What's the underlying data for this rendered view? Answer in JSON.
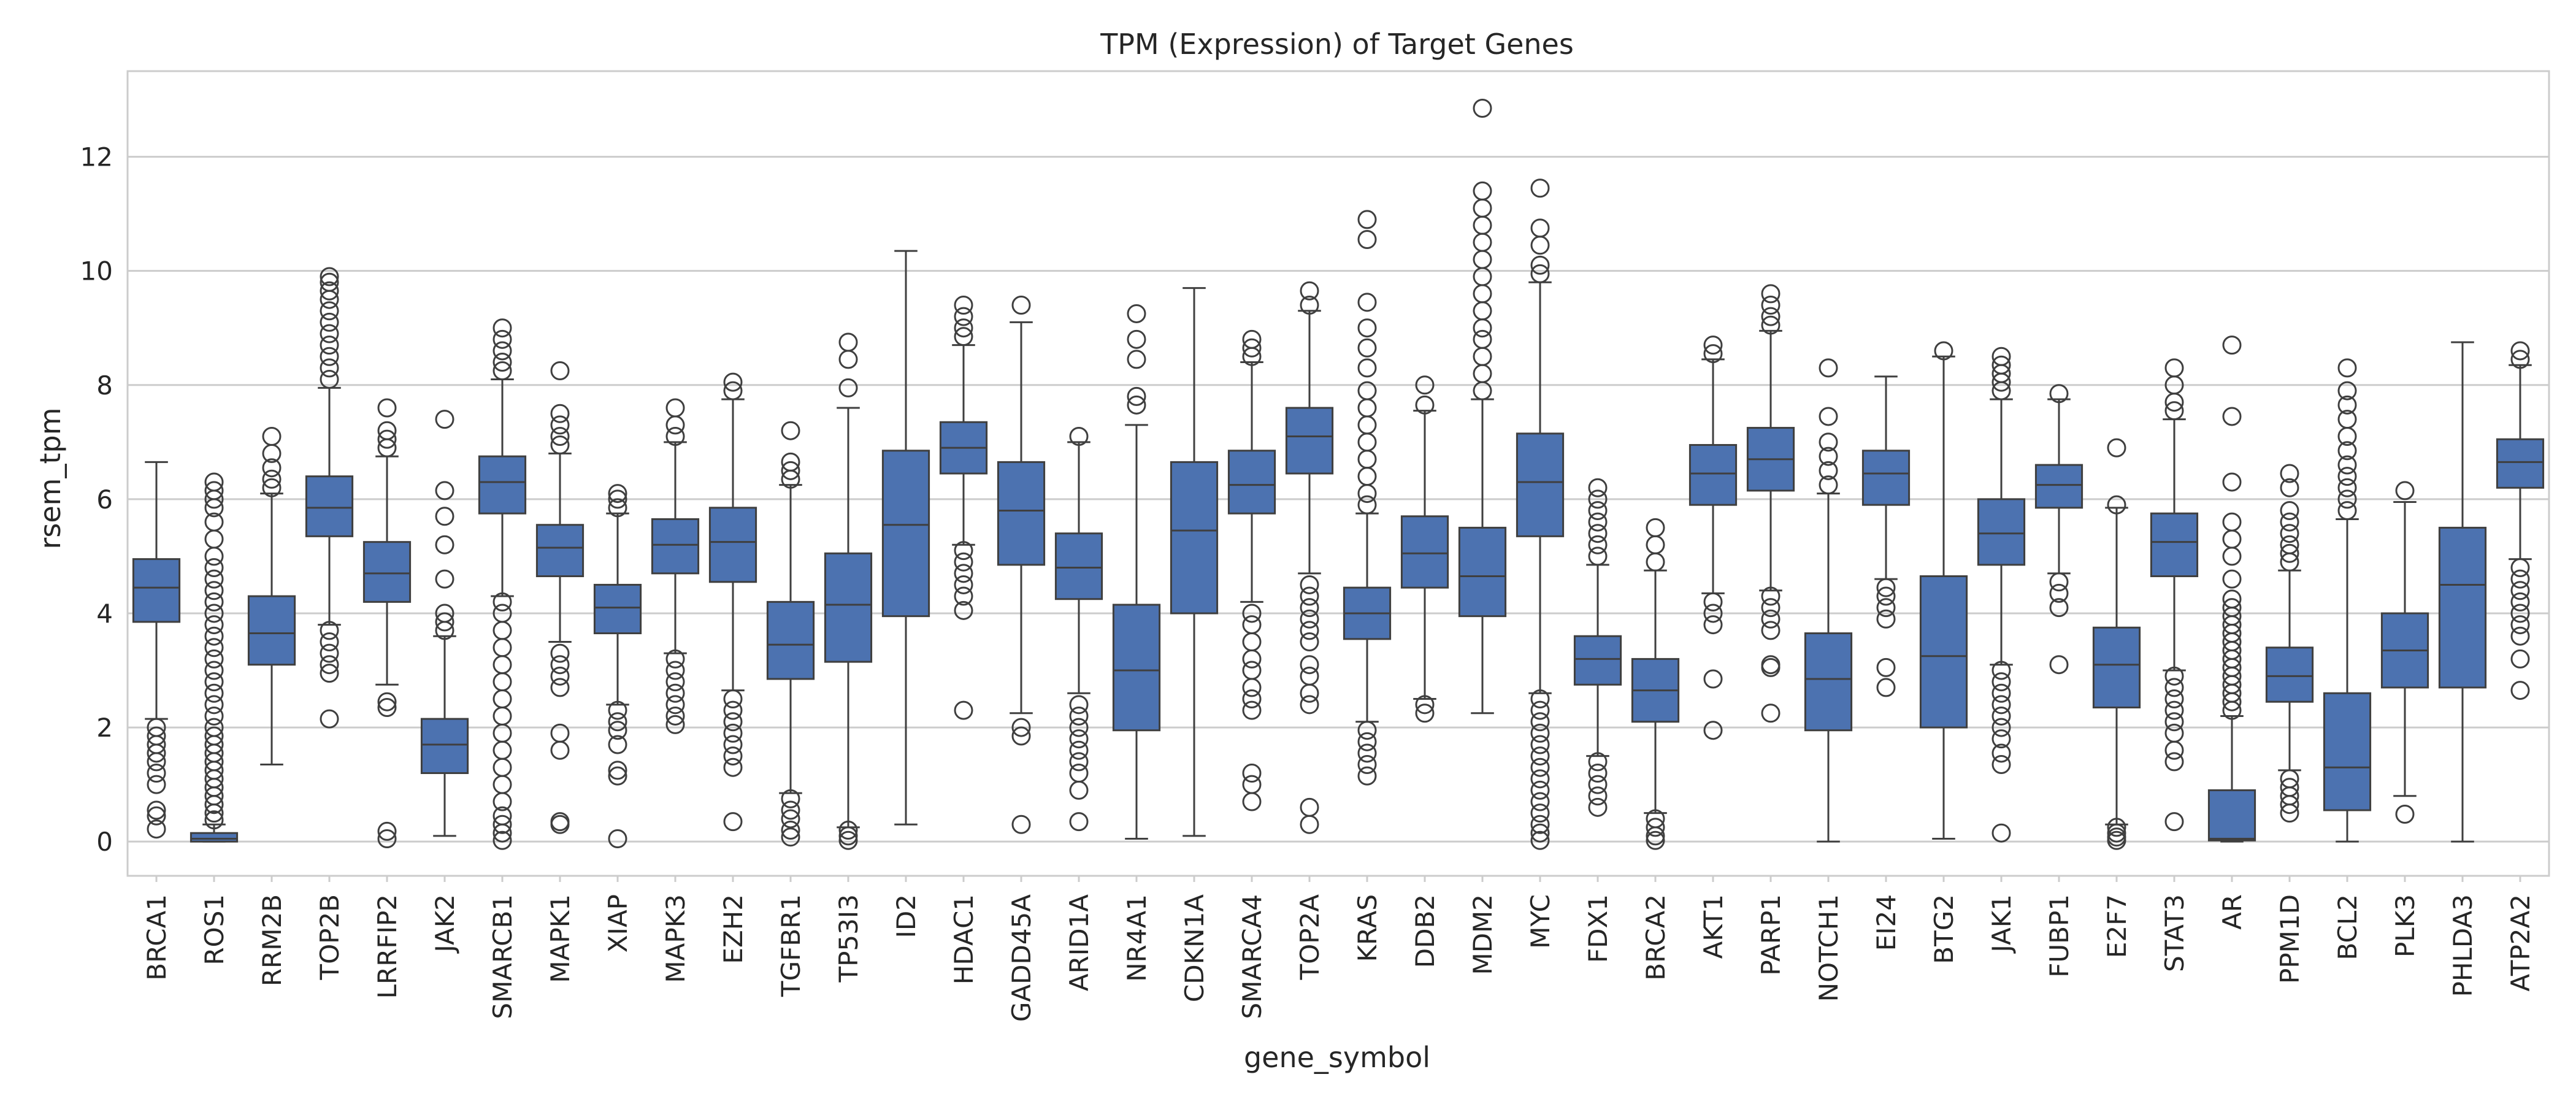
{
  "chart_data": {
    "type": "box",
    "title": "TPM (Expression) of Target Genes",
    "xlabel": "gene_symbol",
    "ylabel": "rsem_tpm",
    "ylim": [
      -0.6,
      13.5
    ],
    "yticks": [
      0,
      2,
      4,
      6,
      8,
      10,
      12
    ],
    "grid": "horizontal",
    "box_color": "#4c72b0",
    "line_color": "#3f3f3f",
    "categories": [
      "BRCA1",
      "ROS1",
      "RRM2B",
      "TOP2B",
      "LRRFIP2",
      "JAK2",
      "SMARCB1",
      "MAPK1",
      "XIAP",
      "MAPK3",
      "EZH2",
      "TGFBR1",
      "TP53I3",
      "ID2",
      "HDAC1",
      "GADD45A",
      "ARID1A",
      "NR4A1",
      "CDKN1A",
      "SMARCA4",
      "TOP2A",
      "KRAS",
      "DDB2",
      "MDM2",
      "MYC",
      "FDX1",
      "BRCA2",
      "AKT1",
      "PARP1",
      "NOTCH1",
      "EI24",
      "BTG2",
      "JAK1",
      "FUBP1",
      "E2F7",
      "STAT3",
      "AR",
      "PPM1D",
      "BCL2",
      "PLK3",
      "PHLDA3",
      "ATP2A2"
    ],
    "boxes": [
      {
        "lw": 2.15,
        "q1": 3.85,
        "med": 4.45,
        "q3": 4.95,
        "uw": 6.65,
        "out": [
          2.0,
          1.85,
          1.7,
          1.55,
          1.4,
          1.2,
          1.0,
          0.55,
          0.45,
          0.22
        ]
      },
      {
        "lw": 0.0,
        "q1": 0.0,
        "med": 0.05,
        "q3": 0.15,
        "uw": 0.3,
        "out": [
          6.3,
          6.15,
          6.0,
          5.85,
          5.6,
          5.3,
          5.0,
          4.8,
          4.6,
          4.4,
          4.2,
          4.0,
          3.8,
          3.6,
          3.4,
          3.2,
          3.0,
          2.8,
          2.6,
          2.4,
          2.2,
          2.0,
          1.85,
          1.7,
          1.55,
          1.4,
          1.25,
          1.1,
          0.95,
          0.8,
          0.65,
          0.5,
          0.38
        ]
      },
      {
        "lw": 1.35,
        "q1": 3.1,
        "med": 3.65,
        "q3": 4.3,
        "uw": 6.1,
        "out": [
          6.2,
          6.35,
          6.55,
          6.8,
          7.1
        ]
      },
      {
        "lw": 3.8,
        "q1": 5.35,
        "med": 5.85,
        "q3": 6.4,
        "uw": 7.95,
        "out": [
          8.1,
          8.3,
          8.5,
          8.7,
          8.9,
          9.1,
          9.3,
          9.5,
          9.65,
          9.8,
          9.9,
          3.7,
          3.5,
          3.3,
          3.1,
          2.95,
          2.15
        ]
      },
      {
        "lw": 2.75,
        "q1": 4.2,
        "med": 4.7,
        "q3": 5.25,
        "uw": 6.75,
        "out": [
          6.9,
          7.05,
          7.2,
          7.6,
          2.45,
          2.35,
          0.18,
          0.05
        ]
      },
      {
        "lw": 0.1,
        "q1": 1.2,
        "med": 1.7,
        "q3": 2.15,
        "uw": 3.6,
        "out": [
          3.7,
          3.85,
          4.0,
          4.6,
          5.2,
          5.7,
          6.15,
          7.4
        ]
      },
      {
        "lw": 4.3,
        "q1": 5.75,
        "med": 6.3,
        "q3": 6.75,
        "uw": 8.1,
        "out": [
          8.25,
          8.4,
          8.6,
          8.8,
          9.0,
          4.2,
          4.0,
          3.7,
          3.4,
          3.1,
          2.8,
          2.5,
          2.2,
          1.9,
          1.6,
          1.3,
          1.0,
          0.7,
          0.45,
          0.3,
          0.15,
          0.02
        ]
      },
      {
        "lw": 3.5,
        "q1": 4.65,
        "med": 5.15,
        "q3": 5.55,
        "uw": 6.8,
        "out": [
          6.95,
          7.1,
          7.3,
          7.5,
          8.25,
          3.3,
          3.1,
          2.9,
          2.7,
          1.9,
          1.6,
          0.35,
          0.3
        ]
      },
      {
        "lw": 2.4,
        "q1": 3.65,
        "med": 4.1,
        "q3": 4.5,
        "uw": 5.75,
        "out": [
          5.85,
          6.0,
          6.1,
          2.3,
          2.1,
          1.95,
          1.7,
          1.25,
          1.15,
          0.05
        ]
      },
      {
        "lw": 3.3,
        "q1": 4.7,
        "med": 5.2,
        "q3": 5.65,
        "uw": 7.0,
        "out": [
          7.1,
          7.3,
          7.6,
          3.2,
          3.0,
          2.8,
          2.6,
          2.4,
          2.2,
          2.05
        ]
      },
      {
        "lw": 2.65,
        "q1": 4.55,
        "med": 5.25,
        "q3": 5.85,
        "uw": 7.75,
        "out": [
          7.9,
          8.05,
          2.5,
          2.3,
          2.1,
          1.9,
          1.7,
          1.5,
          1.3,
          0.35
        ]
      },
      {
        "lw": 0.85,
        "q1": 2.85,
        "med": 3.45,
        "q3": 4.2,
        "uw": 6.25,
        "out": [
          6.35,
          6.5,
          6.65,
          7.2,
          0.75,
          0.55,
          0.4,
          0.2,
          0.08
        ]
      },
      {
        "lw": 0.25,
        "q1": 3.15,
        "med": 4.15,
        "q3": 5.05,
        "uw": 7.6,
        "out": [
          7.95,
          8.45,
          8.75,
          0.2,
          0.1,
          0.02
        ]
      },
      {
        "lw": 0.3,
        "q1": 3.95,
        "med": 5.55,
        "q3": 6.85,
        "uw": 10.35,
        "out": []
      },
      {
        "lw": 5.2,
        "q1": 6.45,
        "med": 6.9,
        "q3": 7.35,
        "uw": 8.7,
        "out": [
          8.85,
          9.0,
          9.2,
          9.4,
          5.1,
          4.9,
          4.7,
          4.5,
          4.3,
          4.05,
          2.3
        ]
      },
      {
        "lw": 2.25,
        "q1": 4.85,
        "med": 5.8,
        "q3": 6.65,
        "uw": 9.1,
        "out": [
          2.0,
          1.85,
          0.3,
          9.4
        ]
      },
      {
        "lw": 2.6,
        "q1": 4.25,
        "med": 4.8,
        "q3": 5.4,
        "uw": 7.0,
        "out": [
          7.1,
          2.4,
          2.2,
          2.0,
          1.8,
          1.6,
          1.4,
          1.2,
          0.9,
          0.35
        ]
      },
      {
        "lw": 0.05,
        "q1": 1.95,
        "med": 3.0,
        "q3": 4.15,
        "uw": 7.3,
        "out": [
          7.65,
          7.8,
          8.45,
          8.8,
          9.25
        ]
      },
      {
        "lw": 0.1,
        "q1": 4.0,
        "med": 5.45,
        "q3": 6.65,
        "uw": 9.7,
        "out": []
      },
      {
        "lw": 4.2,
        "q1": 5.75,
        "med": 6.25,
        "q3": 6.85,
        "uw": 8.4,
        "out": [
          8.5,
          8.65,
          8.8,
          4.0,
          3.8,
          3.5,
          3.2,
          3.0,
          2.7,
          2.5,
          2.3,
          1.2,
          1.0,
          0.7
        ]
      },
      {
        "lw": 4.7,
        "q1": 6.45,
        "med": 7.1,
        "q3": 7.6,
        "uw": 9.3,
        "out": [
          9.4,
          9.65,
          4.5,
          4.3,
          4.1,
          3.9,
          3.7,
          3.5,
          3.1,
          2.9,
          2.6,
          2.4,
          0.6,
          0.3
        ]
      },
      {
        "lw": 2.1,
        "q1": 3.55,
        "med": 4.0,
        "q3": 4.45,
        "uw": 5.75,
        "out": [
          5.9,
          6.1,
          6.4,
          6.7,
          7.0,
          7.3,
          7.6,
          7.9,
          8.3,
          8.65,
          9.0,
          9.45,
          10.55,
          10.9,
          1.95,
          1.75,
          1.55,
          1.35,
          1.15
        ]
      },
      {
        "lw": 2.5,
        "q1": 4.45,
        "med": 5.05,
        "q3": 5.7,
        "uw": 7.55,
        "out": [
          7.65,
          8.0,
          2.4,
          2.25
        ]
      },
      {
        "lw": 2.25,
        "q1": 3.95,
        "med": 4.65,
        "q3": 5.5,
        "uw": 7.75,
        "out": [
          7.9,
          8.2,
          8.5,
          8.8,
          9.0,
          9.3,
          9.6,
          9.9,
          10.2,
          10.5,
          10.8,
          11.1,
          11.4,
          12.85
        ]
      },
      {
        "lw": 2.6,
        "q1": 5.35,
        "med": 6.3,
        "q3": 7.15,
        "uw": 9.8,
        "out": [
          9.95,
          10.1,
          10.45,
          10.75,
          11.45,
          2.5,
          2.3,
          2.1,
          1.9,
          1.7,
          1.5,
          1.3,
          1.1,
          0.9,
          0.7,
          0.5,
          0.3,
          0.15,
          0.02
        ]
      },
      {
        "lw": 1.5,
        "q1": 2.75,
        "med": 3.2,
        "q3": 3.6,
        "uw": 4.85,
        "out": [
          5.0,
          5.2,
          5.4,
          5.6,
          5.8,
          6.0,
          6.2,
          1.4,
          1.2,
          1.0,
          0.8,
          0.6
        ]
      },
      {
        "lw": 0.5,
        "q1": 2.1,
        "med": 2.65,
        "q3": 3.2,
        "uw": 4.75,
        "out": [
          4.9,
          5.2,
          5.5,
          0.4,
          0.25,
          0.1,
          0.02
        ]
      },
      {
        "lw": 4.35,
        "q1": 5.9,
        "med": 6.45,
        "q3": 6.95,
        "uw": 8.45,
        "out": [
          8.55,
          8.7,
          4.2,
          4.0,
          3.8,
          2.85,
          1.95
        ]
      },
      {
        "lw": 4.4,
        "q1": 6.15,
        "med": 6.7,
        "q3": 7.25,
        "uw": 8.95,
        "out": [
          9.05,
          9.2,
          9.4,
          9.6,
          4.3,
          4.1,
          3.9,
          3.7,
          3.1,
          3.05,
          2.25
        ]
      },
      {
        "lw": 0.0,
        "q1": 1.95,
        "med": 2.85,
        "q3": 3.65,
        "uw": 6.1,
        "out": [
          6.25,
          6.5,
          6.75,
          7.0,
          7.45,
          8.3
        ]
      },
      {
        "lw": 4.6,
        "q1": 5.9,
        "med": 6.45,
        "q3": 6.85,
        "uw": 8.15,
        "out": [
          4.45,
          4.3,
          4.1,
          3.9,
          3.05,
          2.7
        ]
      },
      {
        "lw": 0.05,
        "q1": 2.0,
        "med": 3.25,
        "q3": 4.65,
        "uw": 8.5,
        "out": [
          8.6
        ]
      },
      {
        "lw": 3.1,
        "q1": 4.85,
        "med": 5.4,
        "q3": 6.0,
        "uw": 7.75,
        "out": [
          7.9,
          8.05,
          8.2,
          8.35,
          8.5,
          3.0,
          2.8,
          2.6,
          2.4,
          2.2,
          2.0,
          1.8,
          1.55,
          1.35,
          0.15
        ]
      },
      {
        "lw": 4.7,
        "q1": 5.85,
        "med": 6.25,
        "q3": 6.6,
        "uw": 7.75,
        "out": [
          7.85,
          4.55,
          4.35,
          4.1,
          3.1
        ]
      },
      {
        "lw": 0.3,
        "q1": 2.35,
        "med": 3.1,
        "q3": 3.75,
        "uw": 5.85,
        "out": [
          5.9,
          6.9,
          0.25,
          0.15,
          0.08,
          0.02
        ]
      },
      {
        "lw": 3.0,
        "q1": 4.65,
        "med": 5.25,
        "q3": 5.75,
        "uw": 7.4,
        "out": [
          7.55,
          7.7,
          8.0,
          8.3,
          2.9,
          2.7,
          2.5,
          2.3,
          2.1,
          1.9,
          1.6,
          1.4,
          0.35
        ]
      },
      {
        "lw": 0.0,
        "q1": 0.02,
        "med": 0.05,
        "q3": 0.9,
        "uw": 2.2,
        "out": [
          2.3,
          2.45,
          2.6,
          2.75,
          2.9,
          3.05,
          3.2,
          3.35,
          3.5,
          3.65,
          3.8,
          3.95,
          4.1,
          4.25,
          4.6,
          5.0,
          5.3,
          5.6,
          6.3,
          7.45,
          8.7
        ]
      },
      {
        "lw": 1.25,
        "q1": 2.45,
        "med": 2.9,
        "q3": 3.4,
        "uw": 4.75,
        "out": [
          4.9,
          5.05,
          5.2,
          5.4,
          5.6,
          5.8,
          6.2,
          6.45,
          1.1,
          0.95,
          0.8,
          0.65,
          0.5
        ]
      },
      {
        "lw": 0.0,
        "q1": 0.55,
        "med": 1.3,
        "q3": 2.6,
        "uw": 5.65,
        "out": [
          5.8,
          6.0,
          6.2,
          6.4,
          6.6,
          6.85,
          7.1,
          7.4,
          7.65,
          7.9,
          8.3
        ]
      },
      {
        "lw": 0.8,
        "q1": 2.7,
        "med": 3.35,
        "q3": 4.0,
        "uw": 5.95,
        "out": [
          6.15,
          0.48
        ]
      },
      {
        "lw": 0.0,
        "q1": 2.7,
        "med": 4.5,
        "q3": 5.5,
        "uw": 8.75,
        "out": []
      },
      {
        "lw": 4.95,
        "q1": 6.2,
        "med": 6.65,
        "q3": 7.05,
        "uw": 8.35,
        "out": [
          8.45,
          8.6,
          4.8,
          4.6,
          4.4,
          4.2,
          4.0,
          3.8,
          3.6,
          3.2,
          2.65
        ]
      }
    ]
  }
}
